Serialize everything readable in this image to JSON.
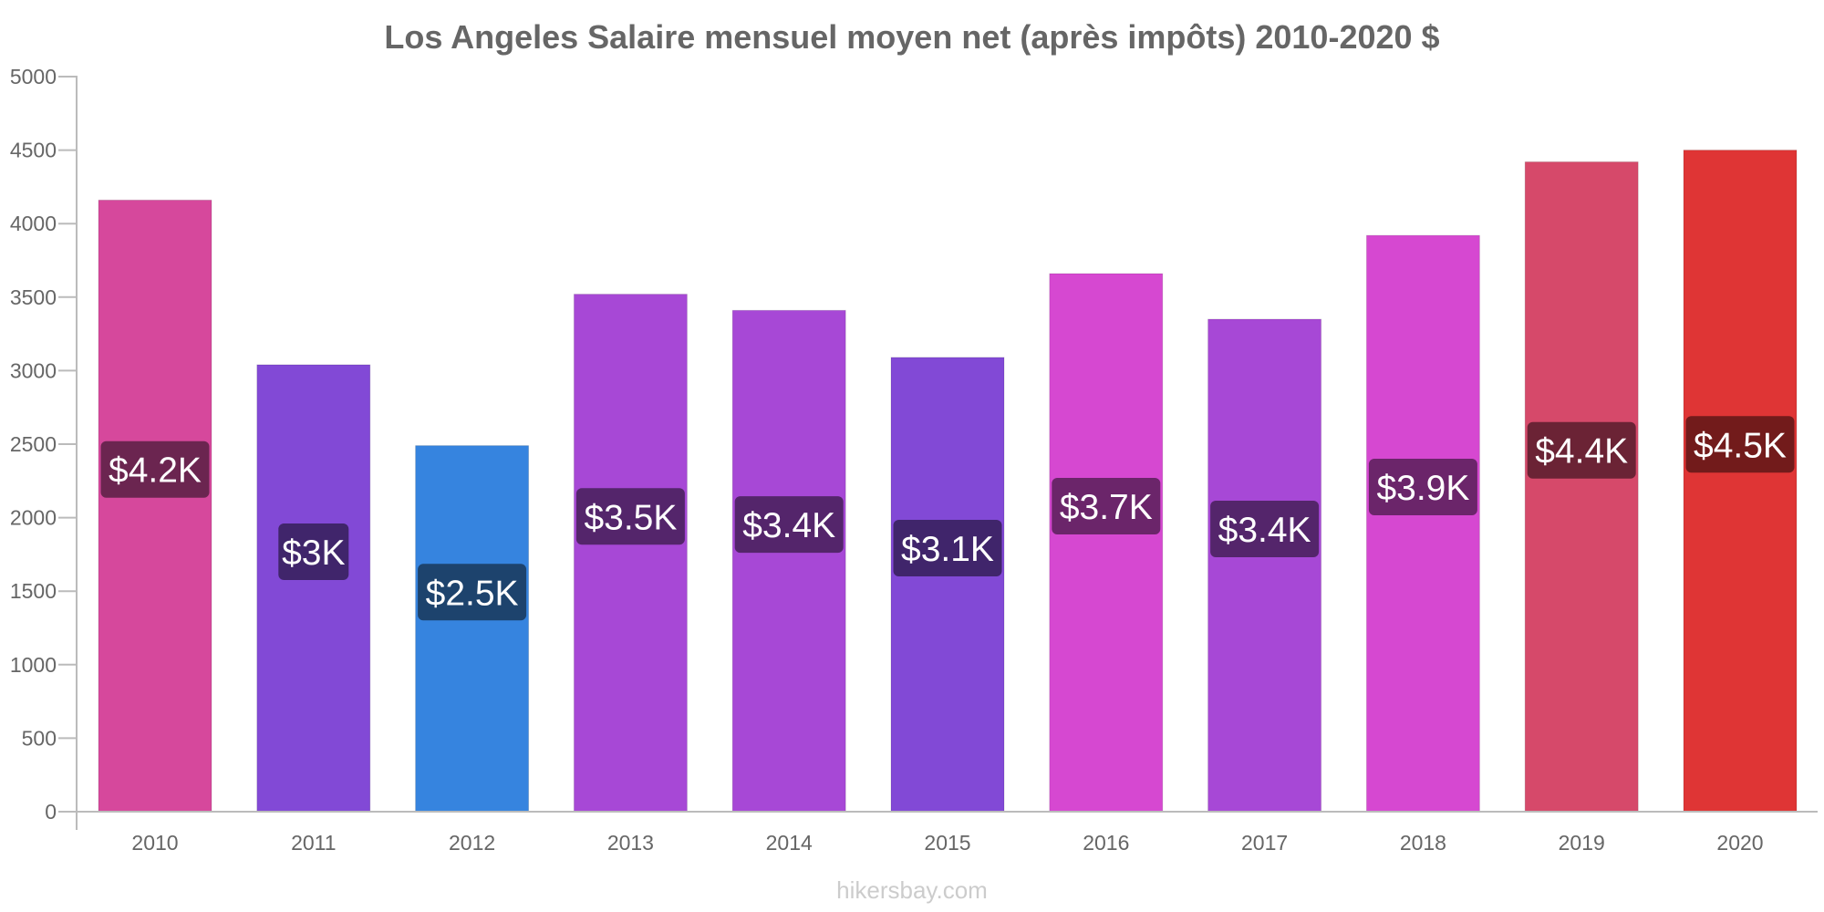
{
  "chart_data": {
    "type": "bar",
    "title": "Los Angeles Salaire mensuel moyen net (après impôts) 2010-2020 $",
    "xlabel": "",
    "ylabel": "",
    "ylim": [
      0,
      5000
    ],
    "yticks": [
      0,
      500,
      1000,
      1500,
      2000,
      2500,
      3000,
      3500,
      4000,
      4500,
      5000
    ],
    "grid": false,
    "categories": [
      "2010",
      "2011",
      "2012",
      "2013",
      "2014",
      "2015",
      "2016",
      "2017",
      "2018",
      "2019",
      "2020"
    ],
    "values": [
      4160,
      3040,
      2490,
      3520,
      3410,
      3090,
      3660,
      3350,
      3920,
      4420,
      4500
    ],
    "data_labels": [
      "$4.2K",
      "$3K",
      "$2.5K",
      "$3.5K",
      "$3.4K",
      "$3.1K",
      "$3.7K",
      "$3.4K",
      "$3.9K",
      "$4.4K",
      "$4.5K"
    ],
    "bar_colors": [
      "#d6489c",
      "#8249d6",
      "#3684df",
      "#a748d6",
      "#a748d6",
      "#8249d6",
      "#d648d1",
      "#a748d6",
      "#d648d1",
      "#d6496a",
      "#df3535"
    ],
    "label_colors": [
      "#6b2550",
      "#40256b",
      "#1d436d",
      "#54256b",
      "#54256b",
      "#40256b",
      "#6b256a",
      "#54256b",
      "#6b256a",
      "#6b2335",
      "#721b1b"
    ]
  },
  "watermark": "hikersbay.com"
}
